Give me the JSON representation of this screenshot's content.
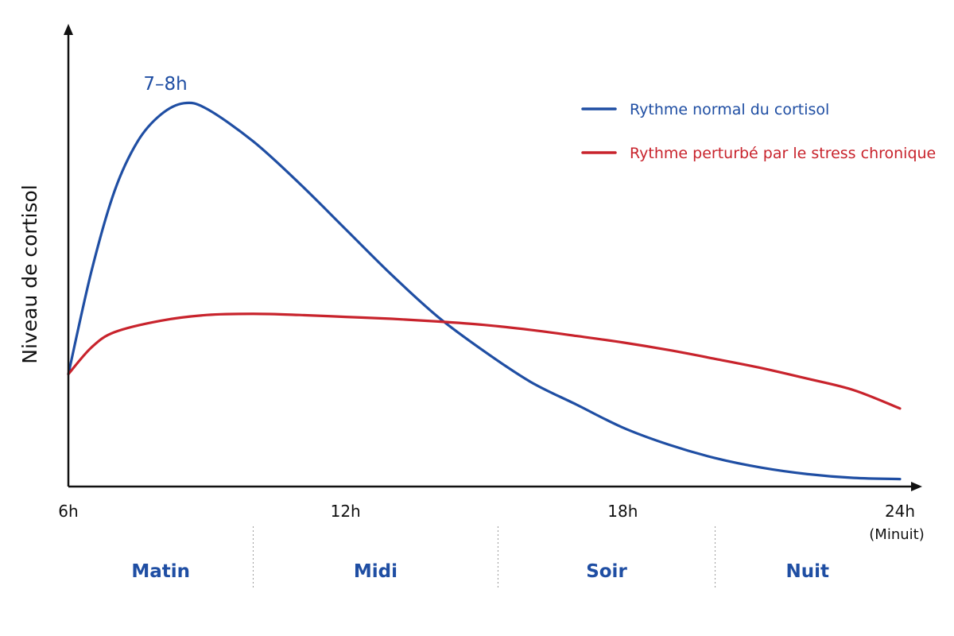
{
  "chart_data": {
    "type": "line",
    "xlabel": "",
    "ylabel": "Niveau de cortisol",
    "xlim": [
      6,
      24
    ],
    "ylim": [
      0,
      100
    ],
    "x_ticks": [
      {
        "value": 6,
        "label": "6h",
        "note": ""
      },
      {
        "value": 12,
        "label": "12h",
        "note": ""
      },
      {
        "value": 18,
        "label": "18h",
        "note": ""
      },
      {
        "value": 24,
        "label": "24h",
        "note": "(Minuit)"
      }
    ],
    "y_ticks_shown": false,
    "grid": false,
    "legend_position": "top-right",
    "periods": [
      {
        "label": "Matin",
        "from": 6,
        "to": 10
      },
      {
        "label": "Midi",
        "from": 10,
        "to": 15.3
      },
      {
        "label": "Soir",
        "from": 15.3,
        "to": 20
      },
      {
        "label": "Nuit",
        "from": 20,
        "to": 24
      }
    ],
    "series": [
      {
        "name": "Rythme normal du cortisol",
        "color": "#1f4ea3",
        "x": [
          6,
          6.5,
          7,
          7.5,
          8,
          8.5,
          9,
          10,
          11,
          12,
          13,
          14,
          15,
          16,
          17,
          18,
          19,
          20,
          21,
          22,
          23,
          24
        ],
        "y": [
          28,
          55,
          76,
          89,
          96,
          99,
          97.5,
          89,
          78,
          66,
          54,
          43,
          34,
          26,
          20,
          14,
          9.5,
          6,
          3.5,
          1.8,
          0.8,
          0.5
        ]
      },
      {
        "name": "Rythme perturbé par le stress chronique",
        "color": "#c8232c",
        "x": [
          6,
          6.5,
          7,
          8,
          9,
          10,
          11,
          12,
          13,
          14,
          15,
          16,
          17,
          18,
          19,
          20,
          21,
          22,
          23,
          24
        ],
        "y": [
          28,
          35,
          39,
          42,
          43.5,
          43.8,
          43.5,
          43,
          42.5,
          41.8,
          40.9,
          39.6,
          38,
          36.3,
          34.3,
          32,
          29.6,
          26.8,
          23.8,
          19
        ]
      }
    ],
    "annotations": [
      {
        "text": "7–8h",
        "x": 8.1,
        "y": 99
      }
    ]
  }
}
